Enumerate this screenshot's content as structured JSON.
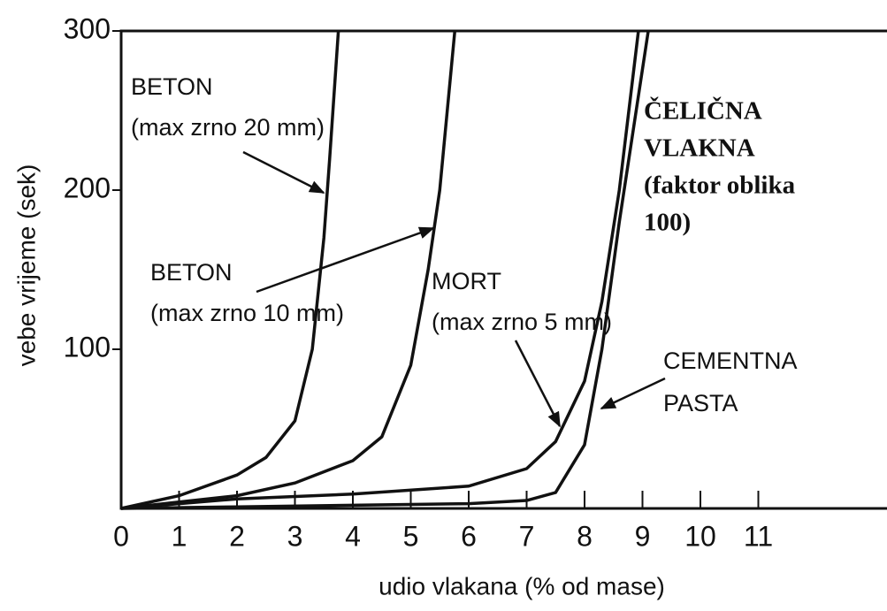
{
  "chart_data": {
    "type": "line",
    "xlabel": "udio vlakana (% od mase)",
    "ylabel": "vebe vrijeme (sek)",
    "xlim": [
      0,
      13
    ],
    "ylim": [
      0,
      300
    ],
    "xticks": [
      0,
      1,
      2,
      3,
      4,
      5,
      6,
      7,
      8,
      9,
      10,
      11
    ],
    "yticks": [
      100,
      200,
      300
    ],
    "series": [
      {
        "color": "#111111",
        "x": [
          0,
          1,
          2,
          2.5,
          3,
          3.3,
          3.5,
          3.6,
          3.75
        ],
        "values": [
          0,
          8,
          21,
          32,
          55,
          100,
          170,
          220,
          300
        ]
      },
      {
        "color": "#111111",
        "x": [
          0,
          1,
          2,
          3,
          4,
          4.5,
          5,
          5.3,
          5.5,
          5.76
        ],
        "values": [
          0,
          4,
          8,
          16,
          30,
          45,
          90,
          150,
          200,
          300
        ]
      },
      {
        "color": "#111111",
        "x": [
          0,
          1,
          2,
          4,
          6,
          7,
          7.5,
          8,
          8.3,
          8.6,
          8.93
        ],
        "values": [
          0,
          3,
          6,
          9,
          14,
          25,
          42,
          80,
          130,
          200,
          300
        ]
      },
      {
        "color": "#111111",
        "x": [
          0,
          2,
          4,
          6,
          7,
          7.5,
          8,
          8.3,
          8.6,
          9.1
        ],
        "values": [
          0,
          1,
          2,
          3,
          5,
          10,
          40,
          100,
          180,
          300
        ]
      }
    ],
    "annotations": [
      [
        "BETON",
        "(max zrno 20 mm)"
      ],
      [
        "BETON",
        "(max zrno 10 mm)"
      ],
      [
        "MORT",
        "(max zrno 5 mm)"
      ],
      [
        "CEMENTNA",
        "PASTA"
      ],
      [
        "ČELIČNA",
        "VLAKNA",
        "(faktor oblika",
        "100)"
      ]
    ]
  }
}
